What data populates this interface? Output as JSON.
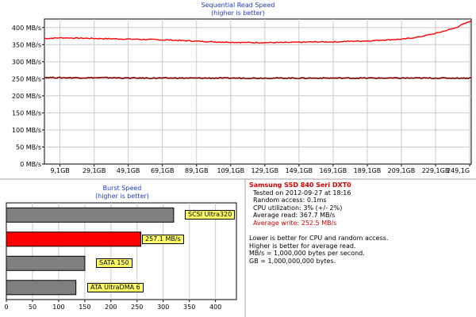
{
  "sequential": {
    "title": "Sequential Read Speed",
    "subtitle": "(higher is better)"
  },
  "burst": {
    "title": "Burst Speed",
    "subtitle": "(higher is better)"
  },
  "info": {
    "drive": "Samsung SSD 840 Seri DXT0",
    "tested": "Tested on 2012-09-27 at 18:16",
    "random_access": "Random access: 0.1ms",
    "cpu": "CPU utilization: 3% (+/- 2%)",
    "avg_read": "Average read: 367.7 MB/s",
    "avg_write": "Average write: 252.5 MB/s",
    "note1": "Lower is better for CPU and random access.",
    "note2": "Higher is better for average read.",
    "note3": "MB/s = 1,000,000 bytes per second.",
    "note4": "GB = 1,000,000,000 bytes."
  },
  "colors": {
    "title_blue": "#1e3cc8",
    "read_line": "#ff0000",
    "write_line": "#800000",
    "bar_gray": "#808080",
    "bar_highlight": "#ff0000",
    "label_bg": "#ffff66"
  },
  "chart_data": [
    {
      "type": "line",
      "title": "Sequential Read Speed",
      "subtitle": "(higher is better)",
      "x_tick_labels": [
        "9,1GB",
        "29,1GB",
        "49,1GB",
        "69,1GB",
        "89,1GB",
        "109,1GB",
        "129,1GB",
        "149,1GB",
        "169,1GB",
        "189,1GB",
        "209,1GB",
        "229,1GB",
        "249,1G"
      ],
      "y_tick_labels": [
        "0 MB/s",
        "50 MB/s",
        "100 MB/s",
        "150 MB/s",
        "200 MB/s",
        "250 MB/s",
        "300 MB/s",
        "350 MB/s",
        "400 MB/s"
      ],
      "xlim": [
        0,
        250
      ],
      "ylim": [
        0,
        425
      ],
      "grid": true,
      "series": [
        {
          "x": [
            0,
            10,
            20,
            30,
            40,
            50,
            60,
            70,
            80,
            90,
            100,
            110,
            120,
            130,
            140,
            150,
            160,
            170,
            180,
            190,
            200,
            210,
            220,
            230,
            240,
            250
          ],
          "values": [
            368,
            370,
            369,
            368,
            367,
            366,
            365,
            364,
            362,
            360,
            358,
            357,
            356,
            356,
            356,
            357,
            358,
            358,
            360,
            361,
            364,
            366,
            373,
            384,
            398,
            420
          ]
        },
        {
          "x": [
            0,
            10,
            20,
            30,
            40,
            50,
            60,
            70,
            80,
            90,
            100,
            110,
            120,
            130,
            140,
            150,
            160,
            170,
            180,
            190,
            200,
            210,
            220,
            230,
            240,
            250
          ],
          "values": [
            254,
            253,
            253,
            253,
            253,
            252,
            252,
            252,
            252,
            252,
            252,
            252,
            252,
            252,
            252,
            252,
            252,
            252,
            252,
            252,
            252,
            252,
            252,
            252,
            252,
            252
          ]
        }
      ]
    },
    {
      "type": "bar",
      "orientation": "horizontal",
      "title": "Burst Speed",
      "subtitle": "(higher is better)",
      "x_tick_labels": [
        "0",
        "50",
        "100",
        "150",
        "200",
        "250",
        "300",
        "350",
        "400"
      ],
      "xlim": [
        0,
        440
      ],
      "grid": true,
      "categories": [
        "SCSI Ultra320",
        "257.1 MB/s",
        "SATA 150",
        "ATA UltraDMA 6"
      ],
      "values": [
        320,
        257.1,
        150,
        133
      ],
      "highlight_index": 1
    }
  ]
}
